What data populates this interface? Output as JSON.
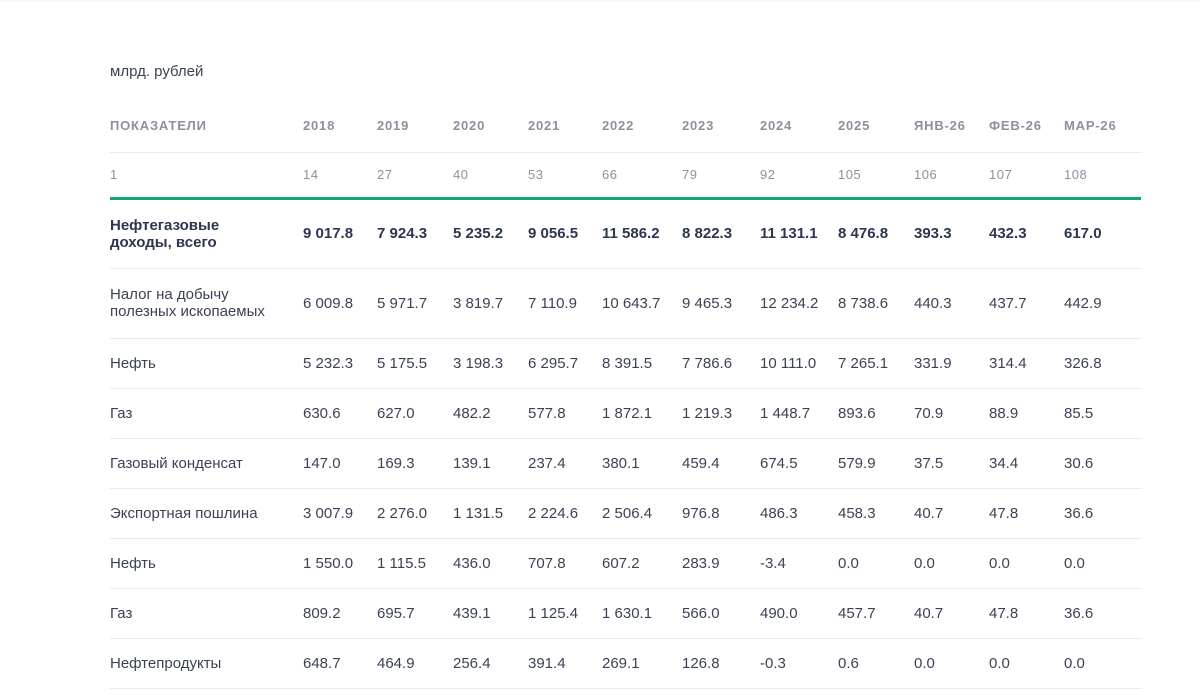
{
  "page": {
    "unit_label": "млрд. рублей"
  },
  "table": {
    "columns": [
      "ПОКАЗАТЕЛИ",
      "2018",
      "2019",
      "2020",
      "2021",
      "2022",
      "2023",
      "2024",
      "2025",
      "ЯНВ-26",
      "ФЕВ-26",
      "МАР-26"
    ],
    "codes": [
      "1",
      "14",
      "27",
      "40",
      "53",
      "66",
      "79",
      "92",
      "105",
      "106",
      "107",
      "108"
    ],
    "rows": [
      {
        "label": "Нефтегазовые доходы, всего",
        "bold": true,
        "two_line": true,
        "values": [
          "9 017.8",
          "7 924.3",
          "5 235.2",
          "9 056.5",
          "11 586.2",
          "8 822.3",
          "11 131.1",
          "8 476.8",
          "393.3",
          "432.3",
          "617.0"
        ]
      },
      {
        "label": "Налог на добычу полезных ископаемых",
        "bold": false,
        "two_line": true,
        "values": [
          "6 009.8",
          "5 971.7",
          "3 819.7",
          "7 110.9",
          "10 643.7",
          "9 465.3",
          "12 234.2",
          "8 738.6",
          "440.3",
          "437.7",
          "442.9"
        ]
      },
      {
        "label": "Нефть",
        "bold": false,
        "two_line": false,
        "values": [
          "5 232.3",
          "5 175.5",
          "3 198.3",
          "6 295.7",
          "8 391.5",
          "7 786.6",
          "10 111.0",
          "7 265.1",
          "331.9",
          "314.4",
          "326.8"
        ]
      },
      {
        "label": "Газ",
        "bold": false,
        "two_line": false,
        "values": [
          "630.6",
          "627.0",
          "482.2",
          "577.8",
          "1 872.1",
          "1 219.3",
          "1 448.7",
          "893.6",
          "70.9",
          "88.9",
          "85.5"
        ]
      },
      {
        "label": "Газовый конденсат",
        "bold": false,
        "two_line": false,
        "values": [
          "147.0",
          "169.3",
          "139.1",
          "237.4",
          "380.1",
          "459.4",
          "674.5",
          "579.9",
          "37.5",
          "34.4",
          "30.6"
        ]
      },
      {
        "label": "Экспортная пошлина",
        "bold": false,
        "two_line": false,
        "values": [
          "3 007.9",
          "2 276.0",
          "1 131.5",
          "2 224.6",
          "2 506.4",
          "976.8",
          "486.3",
          "458.3",
          "40.7",
          "47.8",
          "36.6"
        ]
      },
      {
        "label": "Нефть",
        "bold": false,
        "two_line": false,
        "values": [
          "1 550.0",
          "1 115.5",
          "436.0",
          "707.8",
          "607.2",
          "283.9",
          "-3.4",
          "0.0",
          "0.0",
          "0.0",
          "0.0"
        ]
      },
      {
        "label": "Газ",
        "bold": false,
        "two_line": false,
        "values": [
          "809.2",
          "695.7",
          "439.1",
          "1 125.4",
          "1 630.1",
          "566.0",
          "490.0",
          "457.7",
          "40.7",
          "47.8",
          "36.6"
        ]
      },
      {
        "label": "Нефтепродукты",
        "bold": false,
        "two_line": false,
        "values": [
          "648.7",
          "464.9",
          "256.4",
          "391.4",
          "269.1",
          "126.8",
          "-0.3",
          "0.6",
          "0.0",
          "0.0",
          "0.0"
        ]
      }
    ]
  },
  "chart_data": {
    "type": "table",
    "title": "млрд. рублей",
    "columns": [
      "2018",
      "2019",
      "2020",
      "2021",
      "2022",
      "2023",
      "2024",
      "2025",
      "ЯНВ-26",
      "ФЕВ-26",
      "МАР-26"
    ],
    "column_codes": [
      14,
      27,
      40,
      53,
      66,
      79,
      92,
      105,
      106,
      107,
      108
    ],
    "indicator_column_header": "ПОКАЗАТЕЛИ",
    "indicator_column_code": 1,
    "series": [
      {
        "name": "Нефтегазовые доходы, всего",
        "values": [
          9017.8,
          7924.3,
          5235.2,
          9056.5,
          11586.2,
          8822.3,
          11131.1,
          8476.8,
          393.3,
          432.3,
          617.0
        ]
      },
      {
        "name": "Налог на добычу полезных ископаемых",
        "values": [
          6009.8,
          5971.7,
          3819.7,
          7110.9,
          10643.7,
          9465.3,
          12234.2,
          8738.6,
          440.3,
          437.7,
          442.9
        ]
      },
      {
        "name": "Нефть (НДПИ)",
        "values": [
          5232.3,
          5175.5,
          3198.3,
          6295.7,
          8391.5,
          7786.6,
          10111.0,
          7265.1,
          331.9,
          314.4,
          326.8
        ]
      },
      {
        "name": "Газ (НДПИ)",
        "values": [
          630.6,
          627.0,
          482.2,
          577.8,
          1872.1,
          1219.3,
          1448.7,
          893.6,
          70.9,
          88.9,
          85.5
        ]
      },
      {
        "name": "Газовый конденсат",
        "values": [
          147.0,
          169.3,
          139.1,
          237.4,
          380.1,
          459.4,
          674.5,
          579.9,
          37.5,
          34.4,
          30.6
        ]
      },
      {
        "name": "Экспортная пошлина",
        "values": [
          3007.9,
          2276.0,
          1131.5,
          2224.6,
          2506.4,
          976.8,
          486.3,
          458.3,
          40.7,
          47.8,
          36.6
        ]
      },
      {
        "name": "Нефть (экспортная пошлина)",
        "values": [
          1550.0,
          1115.5,
          436.0,
          707.8,
          607.2,
          283.9,
          -3.4,
          0.0,
          0.0,
          0.0,
          0.0
        ]
      },
      {
        "name": "Газ (экспортная пошлина)",
        "values": [
          809.2,
          695.7,
          439.1,
          1125.4,
          1630.1,
          566.0,
          490.0,
          457.7,
          40.7,
          47.8,
          36.6
        ]
      },
      {
        "name": "Нефтепродукты",
        "values": [
          648.7,
          464.9,
          256.4,
          391.4,
          269.1,
          126.8,
          -0.3,
          0.6,
          0.0,
          0.0,
          0.0
        ]
      }
    ]
  },
  "colors": {
    "accent_green_rule": "#15a573",
    "header_text": "#8b919f",
    "body_text": "#3b4254",
    "bold_text": "#2c374d",
    "row_divider": "#e8e9ec",
    "background": "#ffffff"
  }
}
